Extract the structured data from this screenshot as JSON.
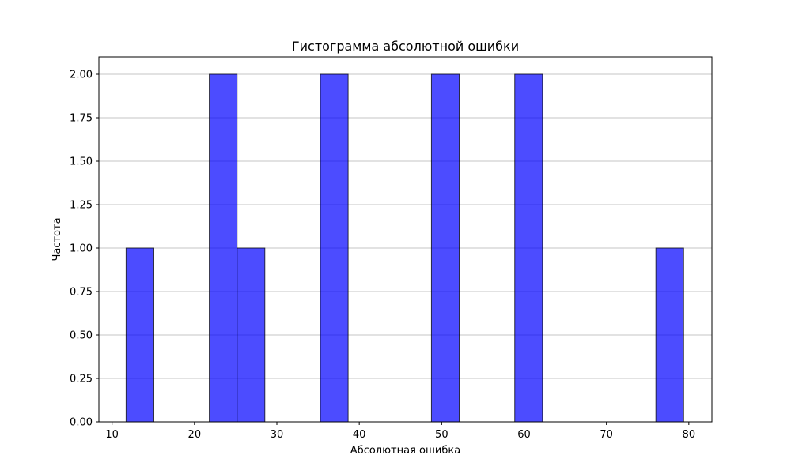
{
  "chart_data": {
    "type": "bar",
    "title": "Гистограмма абсолютной ошибки",
    "xlabel": "Абсолютная ошибка",
    "ylabel": "Частота",
    "xlim": [
      8.4,
      82.8
    ],
    "ylim": [
      0,
      2.1
    ],
    "xticks": [
      10,
      20,
      30,
      40,
      50,
      60,
      70,
      80
    ],
    "yticks": [
      0.0,
      0.25,
      0.5,
      0.75,
      1.0,
      1.25,
      1.5,
      1.75,
      2.0
    ],
    "ytick_labels": [
      "0.00",
      "0.25",
      "0.50",
      "0.75",
      "1.00",
      "1.25",
      "1.50",
      "1.75",
      "2.00"
    ],
    "grid": "y",
    "bar_color": "#0000ff",
    "bar_alpha": 0.7,
    "edge_color": "#000000",
    "bins": [
      {
        "x0": 11.7,
        "x1": 15.07,
        "count": 1
      },
      {
        "x0": 21.8,
        "x1": 25.17,
        "count": 2
      },
      {
        "x0": 25.17,
        "x1": 28.54,
        "count": 1
      },
      {
        "x0": 35.28,
        "x1": 38.65,
        "count": 2
      },
      {
        "x0": 48.76,
        "x1": 52.13,
        "count": 2
      },
      {
        "x0": 58.87,
        "x1": 62.24,
        "count": 2
      },
      {
        "x0": 76.0,
        "x1": 79.37,
        "count": 1
      }
    ]
  }
}
